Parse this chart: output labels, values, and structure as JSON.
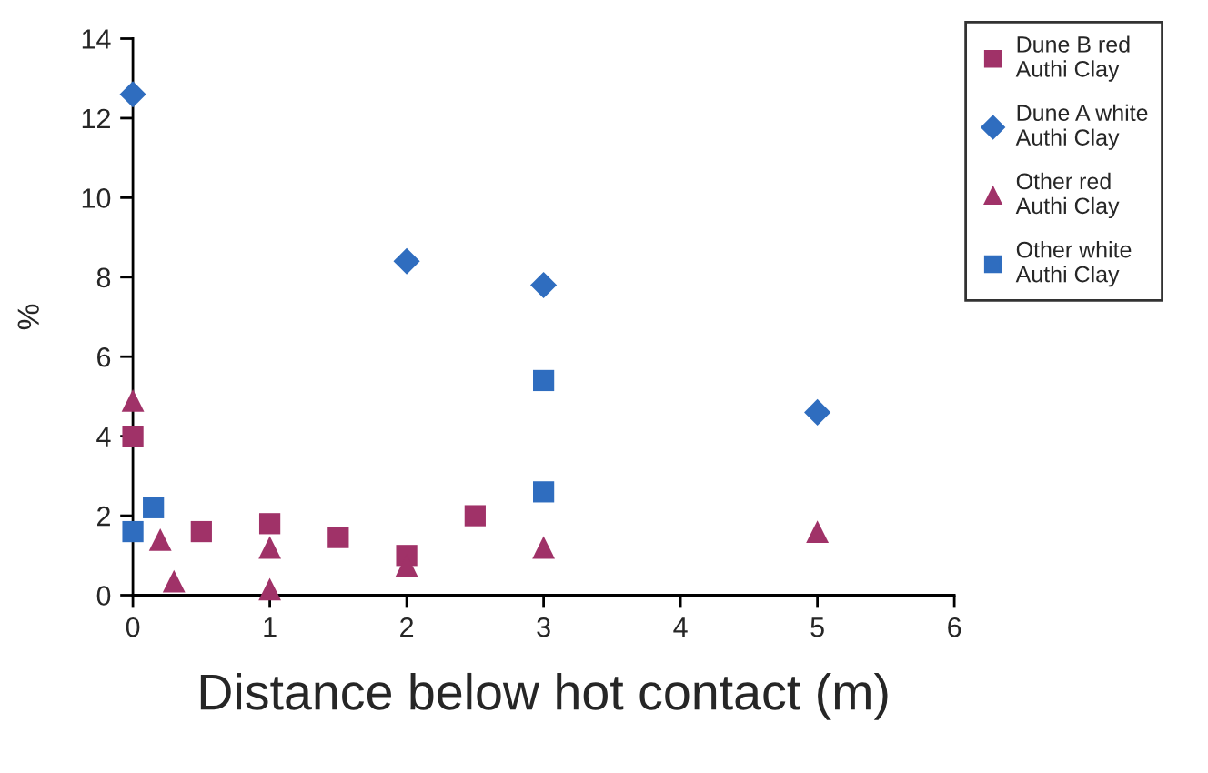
{
  "chart_data": {
    "type": "scatter",
    "xlabel": "Distance below hot contact (m)",
    "ylabel": "%",
    "xlim": [
      0,
      6
    ],
    "xticks": [
      0,
      1,
      2,
      3,
      4,
      5,
      6
    ],
    "ylim": [
      0,
      14
    ],
    "yticks": [
      0,
      2,
      4,
      6,
      8,
      10,
      12,
      14
    ],
    "grid": false,
    "legend": "top right",
    "series": [
      {
        "name": "Dune B red\nAuthi Clay",
        "color": "#a03268",
        "marker": "square",
        "x": [
          0,
          0.5,
          1,
          1.5,
          2,
          2.5
        ],
        "values": [
          4.0,
          1.6,
          1.8,
          1.45,
          1.0,
          2.0
        ]
      },
      {
        "name": "Dune A white\nAuthi Clay",
        "color": "#2f6dbf",
        "marker": "diamond",
        "x": [
          0,
          2,
          3,
          5
        ],
        "values": [
          12.6,
          8.4,
          7.8,
          4.6
        ]
      },
      {
        "name": "Other red\nAuthi Clay",
        "color": "#a03268",
        "marker": "triangle",
        "x": [
          0,
          0.2,
          0.3,
          1,
          1,
          2,
          3,
          5
        ],
        "values": [
          4.9,
          1.4,
          0.35,
          1.2,
          0.15,
          0.75,
          1.2,
          1.6
        ]
      },
      {
        "name": "Other white\nAuthi Clay",
        "color": "#2f6dbf",
        "marker": "square",
        "x": [
          0,
          0.15,
          3,
          3
        ],
        "values": [
          1.6,
          2.2,
          5.4,
          2.6
        ]
      }
    ]
  }
}
